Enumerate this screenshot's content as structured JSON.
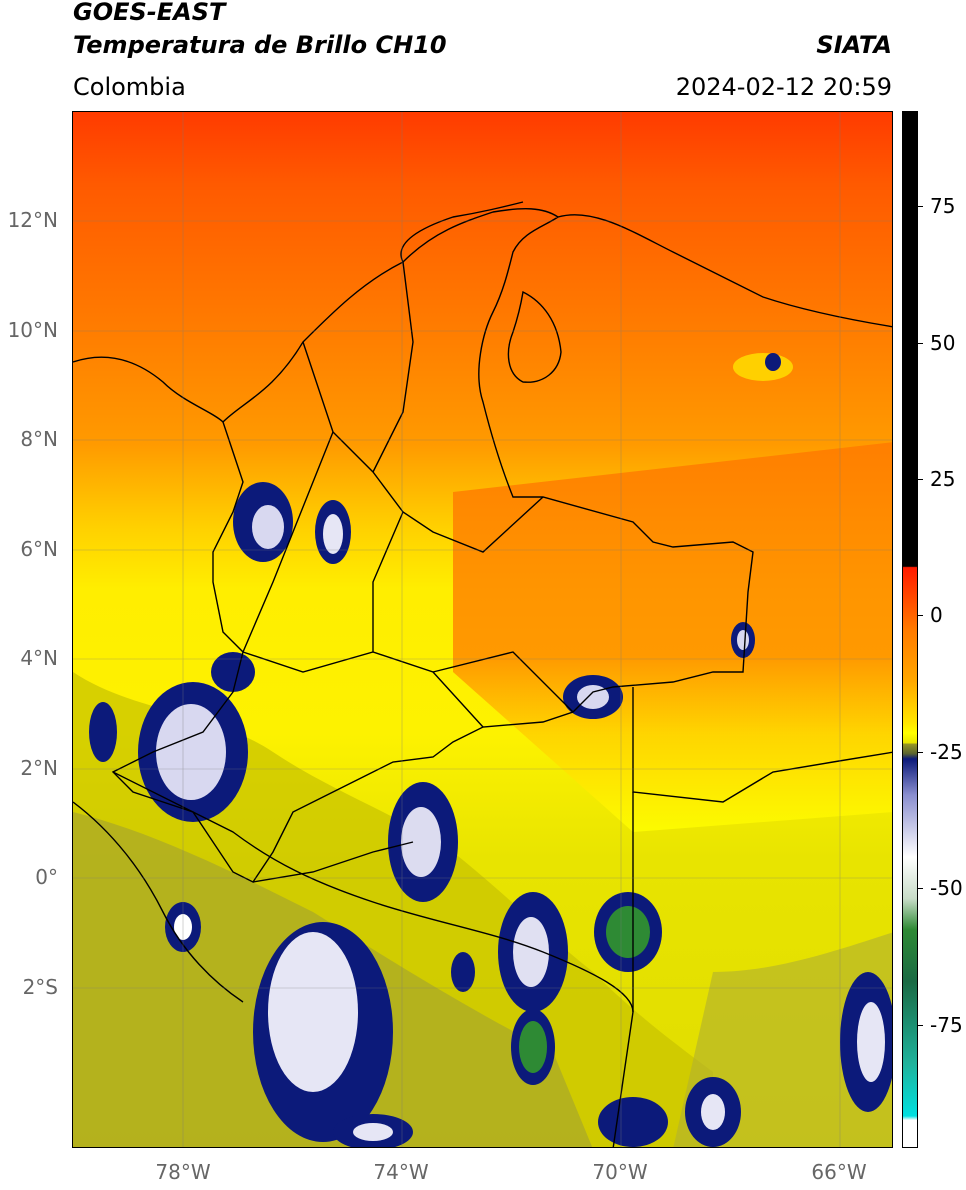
{
  "header": {
    "satellite": "GOES-EAST",
    "product": "Temperatura de Brillo CH10",
    "institution": "SIATA",
    "region": "Colombia",
    "timestamp": "2024-02-12 20:59"
  },
  "map": {
    "lat_labels": [
      "12°N",
      "10°N",
      "8°N",
      "6°N",
      "4°N",
      "2°N",
      "0°",
      "2°S"
    ],
    "lon_labels": [
      "78°W",
      "74°W",
      "70°W",
      "66°W"
    ]
  },
  "colorbar": {
    "labels": [
      "75",
      "50",
      "25",
      "0",
      "-25",
      "-50",
      "-75"
    ],
    "colors": {
      "warm": "#000000",
      "hot": "#ff1a00",
      "orange": "#ff7a00",
      "yellow": "#ffff00",
      "olive": "#9a9a24",
      "navy": "#0c1a7a",
      "white": "#ffffff",
      "green": "#2e8a34",
      "teal": "#1fb39c",
      "cyan": "#00e0e0"
    }
  }
}
